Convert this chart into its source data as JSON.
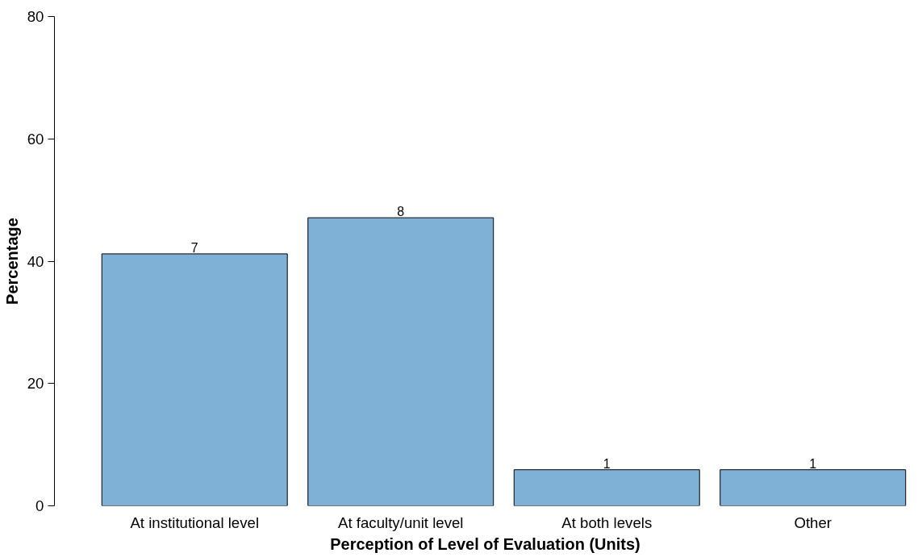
{
  "chart_data": {
    "type": "bar",
    "xlabel": "Perception of Level of Evaluation (Units)",
    "ylabel": "Percentage",
    "categories": [
      "At institutional level",
      "At faculty/unit level",
      "At both levels",
      "Other"
    ],
    "values": [
      41.2,
      47.1,
      5.9,
      5.9
    ],
    "annotations": [
      {
        "text": "7",
        "x": "At institutional level",
        "y": 41.2
      },
      {
        "text": "8",
        "x": "At faculty/unit level",
        "y": 47.1
      },
      {
        "text": "1",
        "x": "At both levels",
        "y": 5.9
      },
      {
        "text": "1",
        "x": "Other",
        "y": 5.9
      }
    ],
    "color": "#7fb0d5",
    "ylim": [
      0,
      80
    ],
    "yticks": [
      0,
      20,
      40,
      60,
      80
    ],
    "grid": false
  }
}
